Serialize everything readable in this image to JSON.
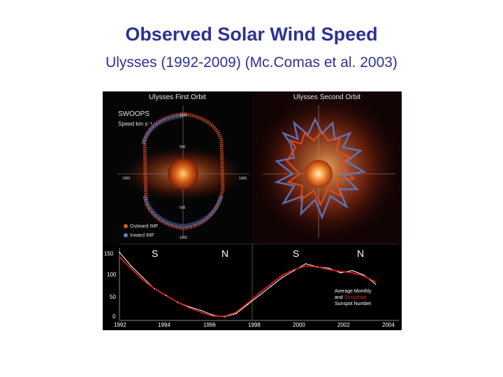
{
  "title": "Observed Solar Wind Speed",
  "subtitle": "Ulysses (1992-2009)  (Mc.Comas et al. 2003)",
  "figure": {
    "left_panel_title": "Ulysses First Orbit",
    "right_panel_title": "Ulysses Second Orbit",
    "instrument": "SWOOPS",
    "speed_label": "Speed  km s⁻¹",
    "polar_ticks": [
      "1000",
      "500",
      "1000",
      "1000",
      "500",
      "1000"
    ],
    "legend_outward": "Outward IMF",
    "legend_inward": "Inward IMF",
    "hemisphere_labels": [
      "S",
      "N",
      "S",
      "N"
    ],
    "sunspot_label_1": "Average Monthly",
    "sunspot_label_2_prefix": "and ",
    "sunspot_label_2_highlight": "Smoothed",
    "sunspot_label_3": "Sunspot Number",
    "y_ticks": [
      "150",
      "100",
      "50",
      "0"
    ],
    "x_ticks": [
      "1992",
      "1994",
      "1996",
      "1998",
      "2000",
      "2002",
      "2004"
    ],
    "colors": {
      "title": "#2e3192",
      "outward": "#e0502a",
      "inward": "#5b7fd6",
      "monthly": "#ffffff",
      "smoothed": "#d62020"
    }
  },
  "chart_data": {
    "type": "line",
    "x": [
      1992.0,
      1992.5,
      1993.0,
      1993.5,
      1994.0,
      1994.5,
      1995.0,
      1995.5,
      1996.0,
      1996.5,
      1997.0,
      1997.5,
      1998.0,
      1998.5,
      1999.0,
      1999.5,
      2000.0,
      2000.5,
      2001.0,
      2001.5,
      2002.0,
      2002.5,
      2003.0
    ],
    "series": [
      {
        "name": "Average Monthly",
        "values": [
          150,
          120,
          95,
          70,
          55,
          40,
          30,
          22,
          12,
          8,
          15,
          35,
          55,
          75,
          95,
          110,
          125,
          118,
          115,
          105,
          110,
          100,
          80
        ]
      },
      {
        "name": "Smoothed",
        "values": [
          140,
          115,
          90,
          70,
          55,
          40,
          28,
          18,
          10,
          9,
          18,
          38,
          60,
          80,
          100,
          112,
          120,
          118,
          112,
          108,
          105,
          98,
          85
        ]
      }
    ],
    "xlim": [
      1992,
      2004
    ],
    "ylim": [
      0,
      160
    ],
    "xticks": [
      1992,
      1994,
      1996,
      1998,
      2000,
      2002,
      2004
    ],
    "yticks": [
      0,
      50,
      100,
      150
    ]
  }
}
